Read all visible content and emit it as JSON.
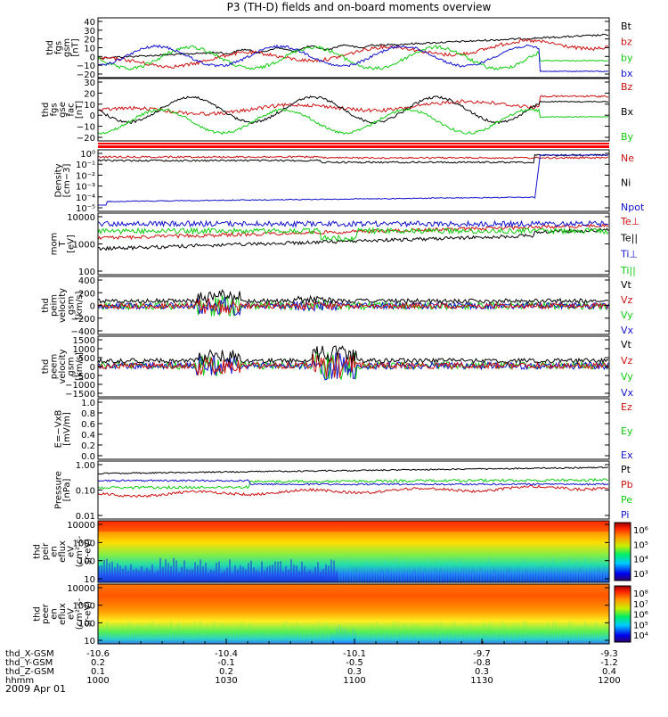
{
  "title": "P3 (TH-D) fields and on-board moments overview",
  "date_label": "2009 Apr 01",
  "colors": {
    "black": "#000000",
    "red": "#cc1111",
    "green": "#11cc11",
    "blue": "#1111cc",
    "bright_red": "#ff0000"
  },
  "time_axis": {
    "rows": [
      {
        "label": "thd_X-GSM",
        "values": [
          "-10.6",
          "-10.4",
          "-10.1",
          "-9.7",
          "-9.3"
        ]
      },
      {
        "label": "thd_Y-GSM",
        "values": [
          "0.2",
          "-0.1",
          "-0.5",
          "-0.8",
          "-1.2"
        ]
      },
      {
        "label": "thd_Z-GSM",
        "values": [
          "0.1",
          "0.2",
          "0.3",
          "0.3",
          "0.4"
        ]
      },
      {
        "label": "hhmm",
        "values": [
          "1000",
          "1030",
          "1100",
          "1130",
          "1200"
        ]
      }
    ]
  },
  "colorbars": {
    "ion": [
      "10⁶",
      "10⁵",
      "10⁴",
      "10³"
    ],
    "electron": [
      "10⁸",
      "10⁷",
      "10⁶",
      "10⁵",
      "10⁴"
    ]
  },
  "chart_data": [
    {
      "id": "fgs_gsm",
      "type": "line",
      "ylabel": [
        "thd",
        "fgs",
        "gsm",
        "[nT]"
      ],
      "yticks": [
        "40",
        "30",
        "20",
        "10",
        "0",
        "−10",
        "−20"
      ],
      "legend": [
        {
          "name": "Bt",
          "color": "black"
        },
        {
          "name": "bz",
          "color": "red"
        },
        {
          "name": "by",
          "color": "green"
        },
        {
          "name": "bx",
          "color": "blue"
        }
      ]
    },
    {
      "id": "fgs_fac",
      "type": "line",
      "ylabel": [
        "thd",
        "fgs",
        "gse",
        "fac",
        "[nT]"
      ],
      "yticks": [
        "30",
        "20",
        "10",
        "0",
        "−10",
        "−20"
      ],
      "legend": [
        {
          "name": "Bz",
          "color": "red"
        },
        {
          "name": "Bx",
          "color": "black"
        },
        {
          "name": "By",
          "color": "green"
        }
      ]
    },
    {
      "id": "density",
      "type": "line",
      "yscale": "log",
      "ylabel": [
        "Density",
        "[cm−3]"
      ],
      "yticks": [
        "10⁰",
        "10⁻¹",
        "10⁻²",
        "10⁻³",
        "10⁻⁴",
        "10⁻⁵"
      ],
      "legend": [
        {
          "name": "Ne",
          "color": "red"
        },
        {
          "name": "Ni",
          "color": "black"
        },
        {
          "name": "Npot",
          "color": "blue"
        }
      ]
    },
    {
      "id": "temp",
      "type": "line",
      "yscale": "log",
      "ylabel": [
        "mom",
        "T",
        "[eV]"
      ],
      "yticks": [
        "10000",
        "1000",
        "100"
      ],
      "legend": [
        {
          "name": "Te⊥",
          "color": "red"
        },
        {
          "name": "Te||",
          "color": "black"
        },
        {
          "name": "Ti⊥",
          "color": "blue"
        },
        {
          "name": "Ti||",
          "color": "green"
        }
      ]
    },
    {
      "id": "vi",
      "type": "line",
      "ylabel": [
        "thd",
        "peim",
        "velocity",
        "gsm",
        "[km/s]"
      ],
      "yticks": [
        "400",
        "200",
        "0",
        "−200",
        "−400"
      ],
      "legend": [
        {
          "name": "Vt",
          "color": "black"
        },
        {
          "name": "Vz",
          "color": "red"
        },
        {
          "name": "Vy",
          "color": "green"
        },
        {
          "name": "Vx",
          "color": "blue"
        }
      ]
    },
    {
      "id": "ve",
      "type": "line",
      "ylabel": [
        "thd",
        "peem",
        "velocity",
        "gsm",
        "[km/s]"
      ],
      "yticks": [
        "1500",
        "1000",
        "500",
        "0",
        "−500",
        "−1000",
        "−1500"
      ],
      "legend": [
        {
          "name": "Vt",
          "color": "black"
        },
        {
          "name": "Vz",
          "color": "red"
        },
        {
          "name": "Vy",
          "color": "green"
        },
        {
          "name": "Vx",
          "color": "blue"
        }
      ]
    },
    {
      "id": "efield",
      "type": "line",
      "ylabel": [
        "E=−VxB",
        "[mV/m]"
      ],
      "yticks": [
        "1.0",
        "0.8",
        "0.6",
        "0.4",
        "0.2",
        "0.0"
      ],
      "legend": [
        {
          "name": "Ez",
          "color": "red"
        },
        {
          "name": "Ey",
          "color": "green"
        },
        {
          "name": "Ex",
          "color": "blue"
        }
      ]
    },
    {
      "id": "pressure",
      "type": "line",
      "yscale": "log",
      "ylabel": [
        "Pressure",
        "[nPa]"
      ],
      "yticks": [
        "1.00",
        "0.10",
        "0.01"
      ],
      "legend": [
        {
          "name": "Pt",
          "color": "black"
        },
        {
          "name": "Pb",
          "color": "red"
        },
        {
          "name": "Pe",
          "color": "green"
        },
        {
          "name": "Pi",
          "color": "blue"
        }
      ]
    },
    {
      "id": "ion_spec",
      "type": "heatmap",
      "yscale": "log",
      "ylabel": [
        "thd",
        "peir",
        "en",
        "eflux",
        "eV",
        "(cm²-s-",
        "sr-eV)"
      ],
      "yticks": [
        "10000",
        "1000",
        "100",
        "10"
      ]
    },
    {
      "id": "ele_spec",
      "type": "heatmap",
      "yscale": "log",
      "ylabel": [
        "thd",
        "peer",
        "en",
        "eflux",
        "eV",
        "(cm²-s-",
        "sr-eV)"
      ],
      "yticks": [
        "10000",
        "1000",
        "100",
        "10"
      ]
    }
  ]
}
